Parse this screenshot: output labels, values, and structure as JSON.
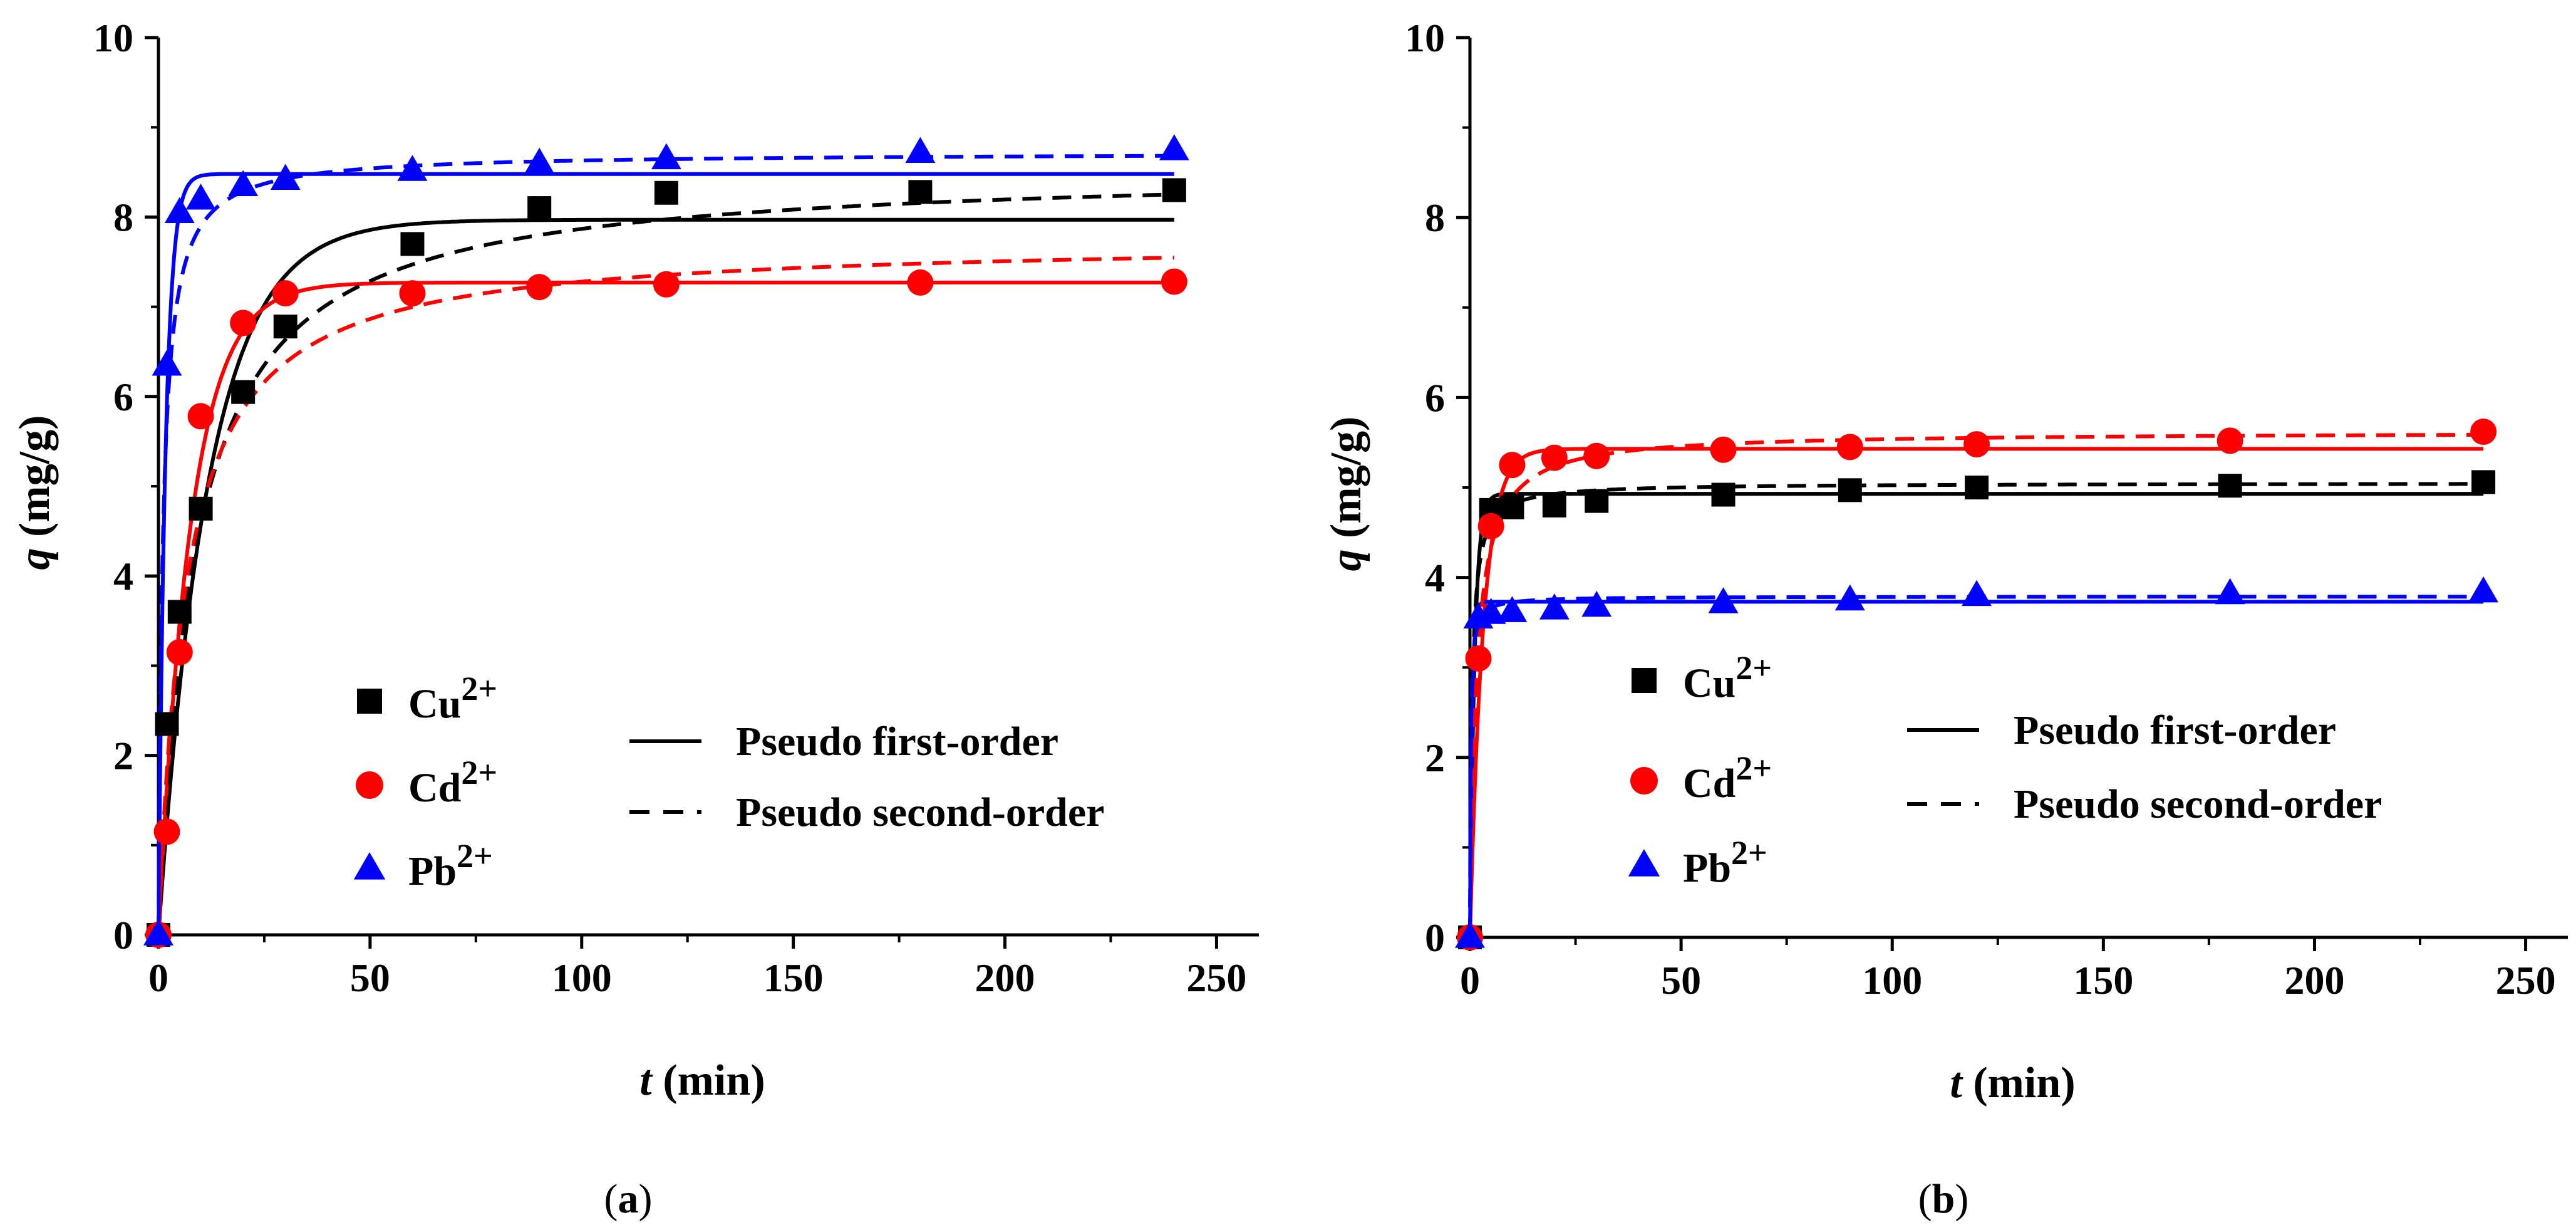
{
  "figure_label_a": "a",
  "figure_label_b": "b",
  "chart_data": [
    {
      "type": "scatter",
      "panel": "a",
      "xlabel": "t (min)",
      "xlabel_var": "t",
      "xlabel_unit": "(min)",
      "ylabel": "q (mg/g)",
      "ylabel_var": "q",
      "ylabel_unit": "(mg/g)",
      "xlim": [
        0,
        260
      ],
      "ylim": [
        0,
        10
      ],
      "xticks": [
        0,
        50,
        100,
        150,
        200,
        250
      ],
      "yticks": [
        0,
        2,
        4,
        6,
        8,
        10
      ],
      "series": [
        {
          "name": "Cu2+",
          "ion": "Cu",
          "charge": "2+",
          "color": "#000000",
          "marker": "square",
          "x": [
            0,
            2,
            5,
            10,
            20,
            30,
            60,
            90,
            120,
            180,
            240
          ],
          "y": [
            0.0,
            2.35,
            3.6,
            4.75,
            6.05,
            6.78,
            7.7,
            8.1,
            8.27,
            8.28,
            8.3
          ]
        },
        {
          "name": "Cd2+",
          "ion": "Cd",
          "charge": "2+",
          "color": "#ff0000",
          "marker": "circle",
          "x": [
            0,
            2,
            5,
            10,
            20,
            30,
            60,
            90,
            120,
            180,
            240
          ],
          "y": [
            0.0,
            1.15,
            3.15,
            5.78,
            6.82,
            7.15,
            7.15,
            7.22,
            7.25,
            7.27,
            7.28
          ]
        },
        {
          "name": "Pb2+",
          "ion": "Pb",
          "charge": "2+",
          "color": "#0000ff",
          "marker": "triangle",
          "x": [
            0,
            2,
            5,
            10,
            20,
            30,
            60,
            90,
            120,
            180,
            240
          ],
          "y": [
            0.0,
            6.35,
            8.05,
            8.2,
            8.35,
            8.42,
            8.52,
            8.6,
            8.65,
            8.72,
            8.75
          ]
        }
      ],
      "fits": {
        "first_order": {
          "Cu2+": {
            "qe": 7.97,
            "k": 0.085
          },
          "Cd2+": {
            "qe": 7.27,
            "k": 0.13
          },
          "Pb2+": {
            "qe": 8.48,
            "k": 0.6
          }
        },
        "second_order": {
          "Cu2+": {
            "qe": 8.55,
            "k": 0.0135
          },
          "Cd2+": {
            "qe": 7.75,
            "k": 0.02
          },
          "Pb2+": {
            "qe": 8.72,
            "k": 0.11
          }
        }
      },
      "legend": {
        "first_order": "Pseudo first-order",
        "second_order": "Pseudo second-order"
      }
    },
    {
      "type": "scatter",
      "panel": "b",
      "xlabel": "t (min)",
      "xlabel_var": "t",
      "xlabel_unit": "(min)",
      "ylabel": "q (mg/g)",
      "ylabel_var": "q",
      "ylabel_unit": "(mg/g)",
      "xlim": [
        0,
        260
      ],
      "ylim": [
        0,
        10
      ],
      "xticks": [
        0,
        50,
        100,
        150,
        200,
        250
      ],
      "yticks": [
        0,
        2,
        4,
        6,
        8,
        10
      ],
      "series": [
        {
          "name": "Cu2+",
          "ion": "Cu",
          "charge": "2+",
          "color": "#000000",
          "marker": "square",
          "x": [
            0,
            5,
            10,
            20,
            30,
            60,
            90,
            120,
            180,
            240
          ],
          "y": [
            0.0,
            4.75,
            4.78,
            4.8,
            4.85,
            4.92,
            4.97,
            5.0,
            5.02,
            5.06
          ]
        },
        {
          "name": "Cd2+",
          "ion": "Cd",
          "charge": "2+",
          "color": "#ff0000",
          "marker": "circle",
          "x": [
            0,
            2,
            5,
            10,
            20,
            30,
            60,
            90,
            120,
            180,
            240
          ],
          "y": [
            0.0,
            3.1,
            4.57,
            5.25,
            5.33,
            5.35,
            5.42,
            5.45,
            5.48,
            5.52,
            5.62
          ]
        },
        {
          "name": "Pb2+",
          "ion": "Pb",
          "charge": "2+",
          "color": "#0000ff",
          "marker": "triangle",
          "x": [
            0,
            2,
            5,
            10,
            20,
            30,
            60,
            90,
            120,
            180,
            240
          ],
          "y": [
            0.0,
            3.55,
            3.6,
            3.62,
            3.65,
            3.68,
            3.72,
            3.75,
            3.8,
            3.82,
            3.84
          ]
        }
      ],
      "fits": {
        "first_order": {
          "Cu2+": {
            "qe": 4.93,
            "k": 0.9
          },
          "Cd2+": {
            "qe": 5.43,
            "k": 0.32
          },
          "Pb2+": {
            "qe": 3.73,
            "k": 2.0
          }
        },
        "second_order": {
          "Cu2+": {
            "qe": 5.05,
            "k": 0.4
          },
          "Cd2+": {
            "qe": 5.62,
            "k": 0.12
          },
          "Pb2+": {
            "qe": 3.79,
            "k": 1.5
          }
        }
      },
      "legend": {
        "first_order": "Pseudo first-order",
        "second_order": "Pseudo second-order"
      }
    }
  ]
}
